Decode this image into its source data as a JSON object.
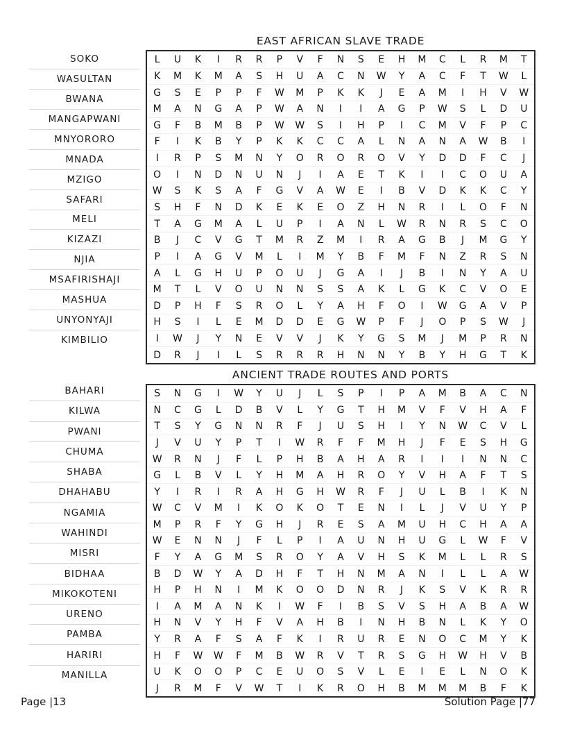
{
  "page": {
    "footer_left": "Page |13",
    "footer_right": "Solution Page |77",
    "text_color": "#1b1b1b",
    "separator_color": "#d6d6d6",
    "grid_border_color": "#2a2a2a",
    "background_color": "#ffffff"
  },
  "puzzles": [
    {
      "title": "EAST AFRICAN SLAVE TRADE",
      "words": [
        "SOKO",
        "WASULTAN",
        "BWANA",
        "MANGAPWANI",
        "MNYORORO",
        "MNADA",
        "MZIGO",
        "SAFARI",
        "MELI",
        "KIZAZI",
        "NJIA",
        "MSAFIRISHAJI",
        "MASHUA",
        "UNYONYAJI",
        "KIMBILIO"
      ],
      "grid": [
        "LUKIRRPVFNSEHMCLRMT",
        "KMKMASHUACNWYACFTWL",
        "GSEPPFWMPKKJEAMIHVW",
        "MANGAPWANIIAGPWSLDU",
        "GFBMBPWWSIHPICMVFPC",
        "FIKBYPKKCCALNANAWBI",
        "IRPSMNYOROROVYDDFCJ",
        "OINDNUNJIAETKIICOUA",
        "WSKSAFGVAWEIBVDKKCY",
        "SHFNDKEKEOZHNRILOFN",
        "TAGMALUPIANLWRNRSCO",
        "BJCVGTMRZMIRAGBJMGY",
        "PIAGVMLIMYBFMFNZRSN",
        "ALGHUPOUJGAIJBINYAU",
        "MTLVOUNNSSAKLGKCVOE",
        "DPHFSROLYAHFOIWGAVP",
        "HSILEMDDEGWPFJOPSWJ",
        "IWJYNEVVJKYGSMJMPRN",
        "DRJILSRRRHNNYBYHGTK"
      ]
    },
    {
      "title": "ANCIENT TRADE ROUTES AND PORTS",
      "words": [
        "BAHARI",
        "KILWA",
        "PWANI",
        "CHUMA",
        "SHABA",
        "DHAHABU",
        "NGAMIA",
        "WAHINDI",
        "MISRI",
        "BIDHAA",
        "MIKOKOTENI",
        "URENO",
        "PAMBA",
        "HARIRI",
        "MANILLA"
      ],
      "grid": [
        "SNGIWYUJLSPIPAMBACN",
        "NCGLDBVLYGTHMVFVHAF",
        "TSYGNNRFJUSHIYNWCVL",
        "JVUYPTIWRFFMHJFESHG",
        "WRNJFLPHBAHARIIINNC",
        "GLBVLYHMAHROYVHAFTS",
        "YIRIRAHGHWRFJULBIKN",
        "WCVMIKOKOTENILJVUYP",
        "MPRFYGHJRESAMUHCHAA",
        "WENNJFLPIAUNHUGLWFV",
        "FYAGMSROYAVHSKMLLRS",
        "BDWYADHFTHNMANILLAW",
        "HPHNIMKOODNRJKSVKRR",
        "IAMANKIWFIBSVSHABAW",
        "HNVYHFVAHBINHBNLKYO",
        "YRAFSAFKIRURENOCMYK",
        "HFWWFMBWRVTRSGHWHVB",
        "UKOOPCEUOSVLEIELNOK",
        "JRMFVWTIKROHBMMMBFK"
      ]
    }
  ]
}
